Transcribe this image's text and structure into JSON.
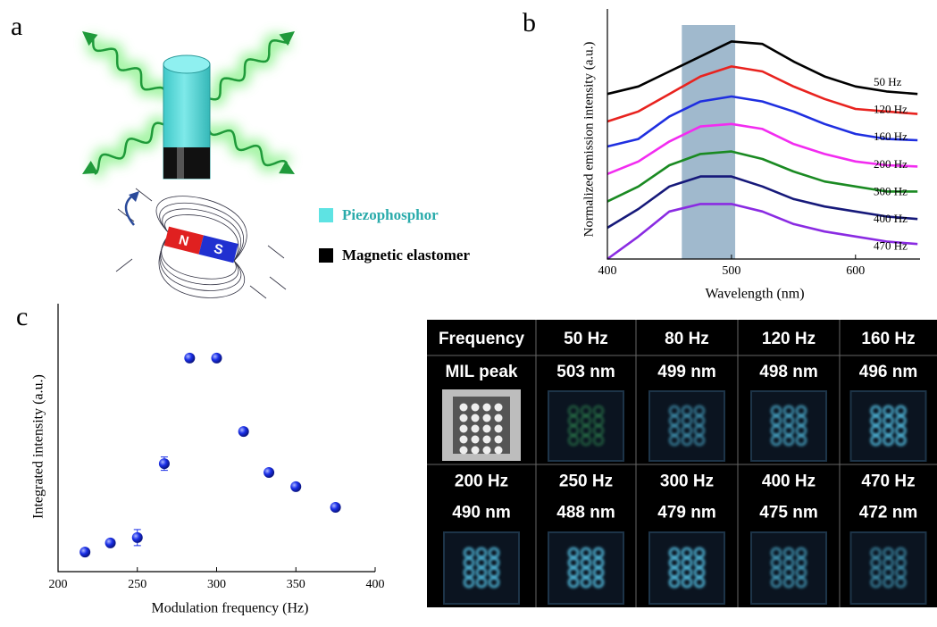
{
  "panel_labels": [
    "a",
    "b",
    "c"
  ],
  "diagram": {
    "legend": [
      "Piezophosphor",
      "Magnetic elastomer"
    ],
    "magnet": [
      "N",
      "S"
    ]
  },
  "chart_data": [
    {
      "type": "line",
      "xlabel": "Wavelength (nm)",
      "ylabel": "Normalized emission intensity (a.u.)",
      "x": [
        400,
        425,
        450,
        475,
        500,
        525,
        550,
        575,
        600,
        625,
        650
      ],
      "xlim": [
        400,
        652
      ],
      "xticks": [
        400,
        500,
        600
      ],
      "ylim": [
        0,
        10
      ],
      "highlight_range": [
        460,
        503
      ],
      "series": [
        {
          "name": "50 Hz",
          "color": "#000000",
          "values": [
            6.6,
            6.9,
            7.5,
            8.1,
            8.7,
            8.6,
            7.9,
            7.3,
            6.9,
            6.7,
            6.6
          ]
        },
        {
          "name": "120 Hz",
          "color": "#e8231f",
          "values": [
            5.5,
            5.9,
            6.6,
            7.3,
            7.7,
            7.5,
            6.9,
            6.4,
            6.0,
            5.9,
            5.8
          ]
        },
        {
          "name": "160 Hz",
          "color": "#1f2fe0",
          "values": [
            4.5,
            4.8,
            5.7,
            6.3,
            6.5,
            6.3,
            5.9,
            5.4,
            5.0,
            4.8,
            4.75
          ]
        },
        {
          "name": "200 Hz",
          "color": "#f22cf0",
          "values": [
            3.4,
            3.9,
            4.7,
            5.3,
            5.4,
            5.2,
            4.6,
            4.2,
            3.9,
            3.75,
            3.7
          ]
        },
        {
          "name": "300 Hz",
          "color": "#1a8a22",
          "values": [
            2.3,
            2.9,
            3.75,
            4.2,
            4.3,
            4.0,
            3.5,
            3.1,
            2.9,
            2.7,
            2.7
          ]
        },
        {
          "name": "400 Hz",
          "color": "#16197a",
          "values": [
            1.25,
            2.0,
            2.9,
            3.3,
            3.3,
            2.9,
            2.4,
            2.1,
            1.9,
            1.7,
            1.6
          ]
        },
        {
          "name": "470 Hz",
          "color": "#8a2be2",
          "values": [
            0,
            0.9,
            1.9,
            2.2,
            2.2,
            1.9,
            1.4,
            1.1,
            0.9,
            0.7,
            0.6
          ]
        }
      ]
    },
    {
      "type": "scatter",
      "xlabel": "Modulation frequency (Hz)",
      "ylabel": "Integrated intensity (a.u.)",
      "x": [
        217,
        233,
        250,
        267,
        283,
        300,
        317,
        333,
        350,
        375
      ],
      "values": [
        0.73,
        1.07,
        1.27,
        4.03,
        7.97,
        7.97,
        5.23,
        3.7,
        3.17,
        2.4
      ],
      "errors": [
        0.1,
        0.1,
        0.3,
        0.25,
        0.1,
        0.1,
        0.1,
        0.1,
        0.1,
        0.1
      ],
      "color": "#1a2fe8",
      "xlim": [
        200,
        400
      ],
      "xticks": [
        200,
        250,
        300,
        350,
        400
      ],
      "ylim": [
        0,
        10
      ]
    }
  ],
  "table": {
    "rows": [
      [
        "Frequency",
        "50 Hz",
        "80 Hz",
        "120 Hz",
        "160 Hz"
      ],
      [
        "MIL peak",
        "503 nm",
        "499 nm",
        "498 nm",
        "496 nm"
      ],
      [
        "200 Hz",
        "250 Hz",
        "300 Hz",
        "400 Hz",
        "470 Hz"
      ],
      [
        "490 nm",
        "488 nm",
        "479 nm",
        "475 nm",
        "472 nm"
      ]
    ]
  }
}
